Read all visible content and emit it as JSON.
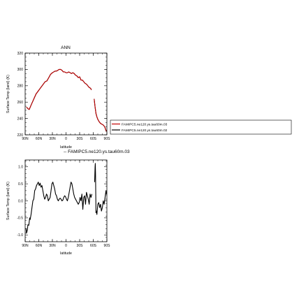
{
  "chart_data": [
    {
      "type": "line",
      "title": "ANN",
      "xlabel": "latitude",
      "ylabel": "Surface Temp (land) (K)",
      "xlim": [
        90,
        -90
      ],
      "ylim": [
        220,
        320
      ],
      "x_ticks": [
        90,
        60,
        30,
        0,
        -30,
        -60,
        -90
      ],
      "x_tick_labels": [
        "90N",
        "60N",
        "30N",
        "0",
        "30S",
        "60S",
        "90S"
      ],
      "y_ticks": [
        220,
        240,
        260,
        280,
        300,
        320
      ],
      "y_tick_labels": [
        "220",
        "240",
        "260",
        "280",
        "300",
        "320"
      ],
      "legend": {
        "placement": "right",
        "entries": [
          "FAMIPC5.ne120.ys.tau60m.03",
          "FAMIPC5.ne120.ys.tau60m.02"
        ]
      },
      "series": [
        {
          "name": "FAMIPC5.ne120.ys.tau60m.03",
          "color": "#c00000",
          "segments": [
            {
              "x": [
                87,
                84,
                81,
                78,
                74,
                70,
                66,
                62,
                58,
                54,
                50,
                46,
                42,
                38,
                34,
                30,
                27,
                24,
                21,
                18,
                15,
                12,
                9,
                6,
                3,
                0,
                -3,
                -6,
                -9,
                -12,
                -15,
                -18,
                -21,
                -24,
                -27,
                -30,
                -33,
                -36,
                -39,
                -42,
                -45,
                -48,
                -51,
                -54,
                -56
              ],
              "y": [
                254,
                252,
                251,
                255,
                260,
                265,
                270,
                273,
                276,
                279,
                282,
                285,
                286,
                290,
                294,
                296,
                297,
                298,
                298,
                299,
                300,
                300,
                299,
                297,
                297,
                296,
                296,
                297,
                296,
                295,
                296,
                295,
                293,
                292,
                290,
                291,
                287,
                287,
                285,
                283,
                282,
                280,
                278,
                277,
                275
              ]
            },
            {
              "x": [
                -62,
                -64,
                -66,
                -68,
                -70,
                -73,
                -76,
                -79,
                -82,
                -85,
                -87,
                -89
              ],
              "y": [
                264,
                254,
                246,
                242,
                239,
                236,
                234,
                233,
                232,
                230,
                227,
                224
              ]
            }
          ]
        },
        {
          "name": "FAMIPC5.ne120.ys.tau60m.02",
          "color": "#000000",
          "segments": [
            {
              "x": [
                87,
                84,
                81,
                78,
                74,
                70,
                66,
                62,
                58,
                54,
                50,
                46,
                42,
                38,
                34,
                30,
                27,
                24,
                21,
                18,
                15,
                12,
                9,
                6,
                3,
                0,
                -3,
                -6,
                -9,
                -12,
                -15,
                -18,
                -21,
                -24,
                -27,
                -30,
                -33,
                -36,
                -39,
                -42,
                -45,
                -48,
                -51,
                -54,
                -56
              ],
              "y": [
                254,
                252,
                251,
                255,
                260,
                265,
                270,
                273,
                276,
                279,
                282,
                285,
                286,
                290,
                294,
                296,
                297,
                298,
                298,
                299,
                300,
                300,
                299,
                297,
                297,
                296,
                296,
                297,
                296,
                295,
                296,
                295,
                293,
                292,
                290,
                291,
                287,
                287,
                285,
                283,
                282,
                280,
                278,
                277,
                275
              ]
            },
            {
              "x": [
                -62,
                -64,
                -66,
                -68,
                -70,
                -73,
                -76,
                -79,
                -82,
                -85,
                -87,
                -89
              ],
              "y": [
                264,
                254,
                246,
                242,
                239,
                236,
                234,
                233,
                232,
                230,
                227,
                224
              ]
            }
          ]
        }
      ]
    },
    {
      "type": "line",
      "title": "-- FAMIPC5.ne120.ys.tau60m.03",
      "xlabel": "latitude",
      "ylabel": "Surface Temp (land) (K)",
      "xlim": [
        90,
        -90
      ],
      "ylim": [
        -1.2,
        1.2
      ],
      "x_ticks": [
        90,
        60,
        30,
        0,
        -30,
        -60,
        -90
      ],
      "x_tick_labels": [
        "90N",
        "60N",
        "30N",
        "0",
        "30S",
        "60S",
        "90S"
      ],
      "y_ticks": [
        -1.0,
        -0.5,
        0.0,
        0.5,
        1.0
      ],
      "y_tick_labels": [
        "-1.0",
        "-0.5",
        "0.0",
        "0.5",
        "1.0"
      ],
      "series": [
        {
          "color": "#000000",
          "segments": [
            {
              "x": [
                88,
                87,
                85,
                84,
                82,
                80,
                79,
                77,
                75,
                73,
                71,
                69,
                67,
                65,
                63,
                61,
                59,
                57,
                55,
                53,
                51,
                49,
                47,
                45,
                43,
                41,
                39,
                37,
                35,
                33,
                31,
                29,
                27,
                25,
                23,
                21,
                19,
                17,
                15,
                13,
                11,
                9,
                7,
                5,
                3,
                1,
                -1,
                -3,
                -5,
                -7,
                -9,
                -11,
                -13,
                -15,
                -17,
                -19,
                -21,
                -23,
                -25,
                -27,
                -29,
                -31,
                -33,
                -35,
                -37,
                -39,
                -41,
                -43,
                -45,
                -47,
                -49,
                -51,
                -53,
                -55,
                -57
              ],
              "y": [
                -0.8,
                -0.95,
                -0.85,
                -0.7,
                -0.72,
                -0.5,
                -0.55,
                -0.4,
                -0.2,
                0.0,
                0.05,
                0.3,
                0.35,
                0.45,
                0.5,
                0.55,
                0.45,
                0.52,
                0.4,
                0.45,
                0.3,
                0.15,
                0.05,
                0.1,
                0.2,
                0.15,
                0.0,
                0.05,
                0.1,
                0.3,
                0.5,
                0.55,
                0.45,
                0.35,
                0.2,
                0.15,
                0.05,
                0.0,
                0.05,
                0.08,
                0.05,
                0.0,
                0.02,
                0.1,
                0.15,
                0.12,
                0.05,
                0.0,
                0.1,
                0.25,
                0.4,
                0.55,
                0.5,
                0.35,
                0.2,
                0.1,
                0.05,
                0.0,
                -0.05,
                -0.1,
                -0.05,
                0.1,
                0.0,
                0.2,
                -0.25,
                0.1,
                0.15,
                -0.1,
                0.25,
                0.15,
                0.05,
                -0.1,
                0.2,
                0.1,
                0.2
              ]
            },
            {
              "x": [
                -63,
                -64,
                -64.5,
                -65,
                -65.5,
                -66,
                -67,
                -68,
                -70,
                -72,
                -74,
                -76,
                -78,
                -80,
                -82,
                -84,
                -86,
                -88,
                -89
              ],
              "y": [
                0.55,
                1.0,
                1.1,
                0.8,
                0.2,
                -0.35,
                -0.3,
                -0.4,
                -0.1,
                -0.05,
                -0.2,
                -0.1,
                -0.3,
                -0.2,
                0.0,
                -0.1,
                0.1,
                0.3,
                0.2
              ]
            }
          ]
        }
      ]
    }
  ]
}
